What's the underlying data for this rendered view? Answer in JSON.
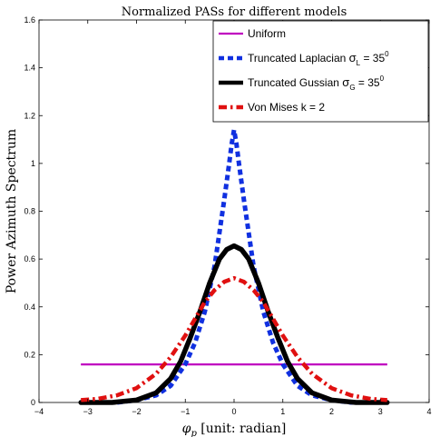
{
  "chart_data": {
    "type": "line",
    "title": "Normalized PASs for different models",
    "xlabel": "φp [unit: radian]",
    "xlabel_main": "φ",
    "xlabel_sub": "p",
    "xlabel_unit": " [unit: radian]",
    "ylabel": "Power Azimuth Spectrum",
    "xlim": [
      -4,
      4
    ],
    "ylim": [
      0,
      1.6
    ],
    "xticks": [
      "−4",
      "−3",
      "−2",
      "−1",
      "0",
      "1",
      "2",
      "3",
      "4"
    ],
    "yticks": [
      "0",
      "0.2",
      "0.4",
      "0.6",
      "0.8",
      "1",
      "1.2",
      "1.4",
      "1.6"
    ],
    "grid": false,
    "legend_position": "top-right",
    "series": [
      {
        "name": "Uniform",
        "legend": {
          "text": "Uniform",
          "sym": "",
          "sub": "",
          "rest": "",
          "sup": ""
        },
        "color": "#c000c0",
        "style": "solid",
        "x": [
          -3.1416,
          3.1416
        ],
        "y": [
          0.159,
          0.159
        ]
      },
      {
        "name": "Truncated Laplacian σL = 35⁰",
        "legend": {
          "text": "Truncated Laplacian ",
          "sym": "σ",
          "sub": "L",
          "rest": " = 35",
          "sup": "0"
        },
        "color": "#1030e0",
        "style": "dotted",
        "x": [
          -3.14,
          -2.8,
          -2.4,
          -2.0,
          -1.6,
          -1.3,
          -1.0,
          -0.8,
          -0.6,
          -0.4,
          -0.3,
          -0.2,
          -0.1,
          -0.05,
          0,
          0.05,
          0.1,
          0.2,
          0.3,
          0.4,
          0.6,
          0.8,
          1.0,
          1.3,
          1.6,
          2.0,
          2.4,
          2.8,
          3.14
        ],
        "y": [
          0.0,
          0.0,
          0.0,
          0.01,
          0.03,
          0.07,
          0.16,
          0.25,
          0.38,
          0.57,
          0.71,
          0.85,
          1.0,
          1.08,
          1.14,
          1.08,
          1.0,
          0.85,
          0.71,
          0.57,
          0.38,
          0.25,
          0.16,
          0.07,
          0.03,
          0.01,
          0.0,
          0.0,
          0.0
        ]
      },
      {
        "name": "Truncated Gussian σG = 35⁰",
        "legend": {
          "text": "Truncated Gussian ",
          "sym": "σ",
          "sub": "G",
          "rest": " = 35",
          "sup": "0"
        },
        "color": "#000000",
        "style": "solid-thick",
        "x": [
          -3.14,
          -2.5,
          -2.0,
          -1.6,
          -1.3,
          -1.1,
          -0.9,
          -0.7,
          -0.5,
          -0.3,
          -0.15,
          0,
          0.15,
          0.3,
          0.5,
          0.7,
          0.9,
          1.1,
          1.3,
          1.6,
          2.0,
          2.5,
          3.14
        ],
        "y": [
          0.0,
          0.0,
          0.01,
          0.04,
          0.1,
          0.17,
          0.27,
          0.38,
          0.5,
          0.6,
          0.64,
          0.655,
          0.64,
          0.6,
          0.5,
          0.38,
          0.27,
          0.17,
          0.1,
          0.04,
          0.01,
          0.0,
          0.0
        ]
      },
      {
        "name": "Von Mises k = 2",
        "legend": {
          "text": "Von Mises k = 2",
          "sym": "",
          "sub": "",
          "rest": "",
          "sup": ""
        },
        "color": "#e01010",
        "style": "dashdot",
        "x": [
          -3.14,
          -2.8,
          -2.4,
          -2.0,
          -1.6,
          -1.3,
          -1.0,
          -0.8,
          -0.6,
          -0.4,
          -0.2,
          0,
          0.2,
          0.4,
          0.6,
          0.8,
          1.0,
          1.3,
          1.6,
          2.0,
          2.4,
          2.8,
          3.14
        ],
        "y": [
          0.01,
          0.015,
          0.03,
          0.06,
          0.12,
          0.19,
          0.28,
          0.35,
          0.42,
          0.47,
          0.505,
          0.52,
          0.505,
          0.47,
          0.42,
          0.35,
          0.28,
          0.19,
          0.12,
          0.06,
          0.03,
          0.015,
          0.01
        ]
      }
    ]
  }
}
